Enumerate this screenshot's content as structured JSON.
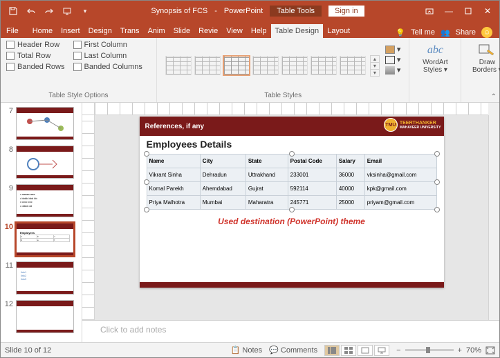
{
  "title": {
    "doc": "Synopsis of FCS",
    "app": "PowerPoint",
    "tools": "Table Tools",
    "signin": "Sign in"
  },
  "tabs": {
    "file": "File",
    "home": "Home",
    "insert": "Insert",
    "design": "Design",
    "trans": "Trans",
    "anim": "Anim",
    "slide": "Slide",
    "review": "Revie",
    "view": "View",
    "help": "Help",
    "table_design": "Table Design",
    "layout": "Layout",
    "tellme": "Tell me",
    "share": "Share"
  },
  "ribbon": {
    "style_options": {
      "header_row": "Header Row",
      "total_row": "Total Row",
      "banded_rows": "Banded Rows",
      "first_col": "First Column",
      "last_col": "Last Column",
      "banded_cols": "Banded Columns",
      "label": "Table Style Options"
    },
    "table_styles_label": "Table Styles",
    "wordart": "WordArt\nStyles",
    "draw_borders": "Draw\nBorders"
  },
  "thumbs": [
    7,
    8,
    9,
    10,
    11,
    12
  ],
  "active_thumb": 10,
  "slide": {
    "ref_label": "References, if any",
    "uni_name": "TEERTHANKER",
    "uni_sub": "MAHAVEER UNIVERSITY",
    "title": "Employees Details",
    "headers": [
      "Name",
      "City",
      "State",
      "Postal Code",
      "Salary",
      "Email"
    ],
    "rows": [
      [
        "Vikrant Sinha",
        "Dehradun",
        "Uttrakhand",
        "233001",
        "36000",
        "vksinha@gmail.com"
      ],
      [
        "Komal Parekh",
        "Ahemdabad",
        "Gujrat",
        "592114",
        "40000",
        "kpk@gmail.com"
      ],
      [
        "Priya Malhotra",
        "Mumbai",
        "Maharatra",
        "245771",
        "25000",
        "priyam@gmail.com"
      ]
    ],
    "caption": "Used destination (PowerPoint) theme"
  },
  "notes_placeholder": "Click to add notes",
  "status": {
    "slide_of": "Slide 10 of 12",
    "notes": "Notes",
    "comments": "Comments",
    "zoom_pct": "70%"
  },
  "colors": {
    "accent": "#b7472a",
    "dark": "#7a1a1a"
  }
}
